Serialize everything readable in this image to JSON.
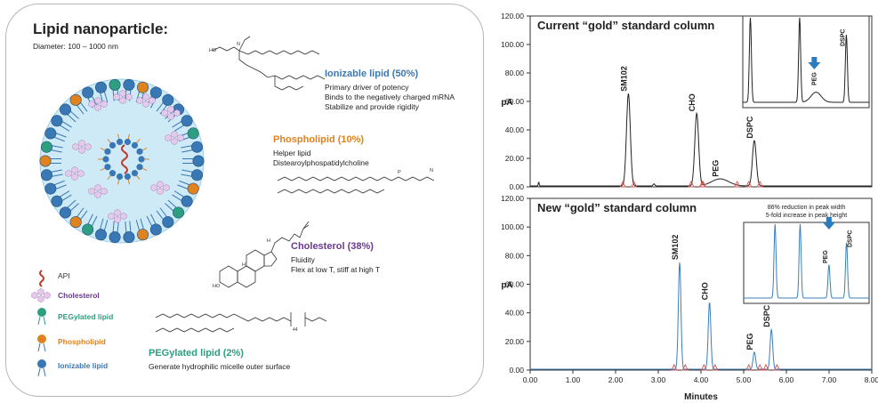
{
  "lnp": {
    "title": "Lipid nanoparticle:",
    "diameter": "Diameter: 100 – 1000 nm",
    "ionizable": {
      "title": "Ionizable lipid (50%)",
      "lines": [
        "Primary driver of potency",
        "Binds to the negatively charged mRNA",
        "Stabilize and provide rigidity"
      ]
    },
    "phospholipid": {
      "title": "Phospholipid (10%)",
      "lines": [
        "Helper lipid",
        "Distearoylphospatidylcholine"
      ]
    },
    "cholesterol": {
      "title": "Cholesterol (38%)",
      "lines": [
        "Fluidity",
        "Flex at low T, stiff at high T"
      ]
    },
    "pegylated": {
      "title": "PEGylated lipid (2%)",
      "lines": [
        "Generate hydrophilic micelle outer surface"
      ]
    },
    "legend": [
      "API",
      "Cholesterol",
      "PEGylated lipid",
      "Phospholipid",
      "Ionizable lipid"
    ],
    "structure_labels": {
      "ho": "HO",
      "n": "N",
      "p": "P",
      "h": "H",
      "n_sub": "44"
    }
  },
  "colors": {
    "ionizable": "#3a78b5",
    "phospholipid": "#e0821e",
    "cholesterol": "#6a3a8e",
    "pegylated": "#2e9e80",
    "api": "#c0392b",
    "core_fill": "#cdeaf6",
    "trace_top": "#222222",
    "trace_bottom": "#3b7fb8",
    "marker": "#d9534f",
    "arrow": "#2b7bbf"
  },
  "chart_data": [
    {
      "type": "line",
      "title": "Current “gold” standard column",
      "ylabel": "pA",
      "ylim": [
        0,
        120
      ],
      "xlim": [
        0,
        8
      ],
      "yticks": [
        "0.00",
        "20.00",
        "40.00",
        "60.00",
        "80.00",
        "100.00",
        "120.00"
      ],
      "peaks": [
        {
          "label": "SM102",
          "x": 2.3,
          "height": 65
        },
        {
          "label": "CHO",
          "x": 3.9,
          "height": 51
        },
        {
          "label": "PEG",
          "x": 4.45,
          "height": 5
        },
        {
          "label": "DSPC",
          "x": 5.25,
          "height": 32
        }
      ],
      "inset": {
        "labels": [
          "PEG",
          "DSPC"
        ]
      }
    },
    {
      "type": "line",
      "title": "New “gold” standard column",
      "xlabel": "Minutes",
      "ylabel": "pA",
      "ylim": [
        0,
        120
      ],
      "xlim": [
        0,
        8
      ],
      "yticks": [
        "0.00",
        "20.00",
        "40.00",
        "60.00",
        "80.00",
        "100.00",
        "120.00"
      ],
      "xticks": [
        "0.00",
        "1.00",
        "2.00",
        "3.00",
        "4.00",
        "5.00",
        "6.00",
        "7.00",
        "8.00"
      ],
      "peaks": [
        {
          "label": "SM102",
          "x": 3.5,
          "height": 75
        },
        {
          "label": "CHO",
          "x": 4.2,
          "height": 47
        },
        {
          "label": "PEG",
          "x": 5.25,
          "height": 12
        },
        {
          "label": "DSPC",
          "x": 5.65,
          "height": 28
        }
      ],
      "inset": {
        "labels": [
          "PEG",
          "DSPC"
        ],
        "notes": [
          "86% reduction in peak width",
          "5-fold increase in peak height"
        ]
      }
    }
  ]
}
